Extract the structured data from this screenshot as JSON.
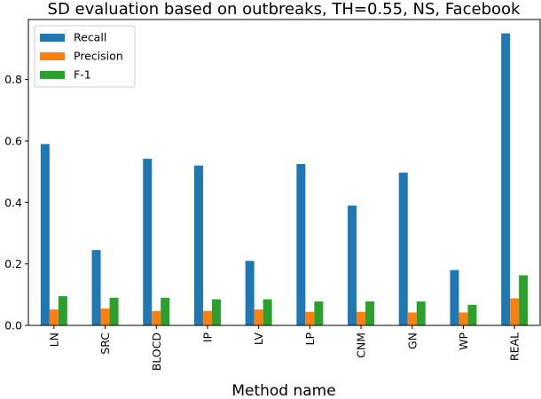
{
  "chart_data": {
    "type": "bar",
    "title": "SD evaluation based on outbreaks, TH=0.55, NS, Facebook",
    "xlabel": "Method name",
    "ylabel": "",
    "categories": [
      "LN",
      "SRC",
      "BLOCD",
      "IP",
      "LV",
      "LP",
      "CNM",
      "GN",
      "WP",
      "REAL"
    ],
    "series": [
      {
        "name": "Recall",
        "color": "#1f77b4",
        "values": [
          0.59,
          0.245,
          0.542,
          0.52,
          0.21,
          0.525,
          0.39,
          0.497,
          0.18,
          0.95
        ]
      },
      {
        "name": "Precision",
        "color": "#ff7f0e",
        "values": [
          0.052,
          0.055,
          0.047,
          0.047,
          0.052,
          0.044,
          0.044,
          0.042,
          0.042,
          0.088
        ]
      },
      {
        "name": "F-1",
        "color": "#2ca02c",
        "values": [
          0.095,
          0.09,
          0.09,
          0.085,
          0.085,
          0.078,
          0.078,
          0.078,
          0.067,
          0.163
        ]
      }
    ],
    "ylim": [
      0,
      0.995
    ],
    "yticks": [
      0.0,
      0.2,
      0.4,
      0.6,
      0.8
    ],
    "ytick_labels": [
      "0.0",
      "0.2",
      "0.4",
      "0.6",
      "0.8"
    ],
    "xtick_rotation": "vertical",
    "grid": false,
    "legend_position": "upper left"
  }
}
